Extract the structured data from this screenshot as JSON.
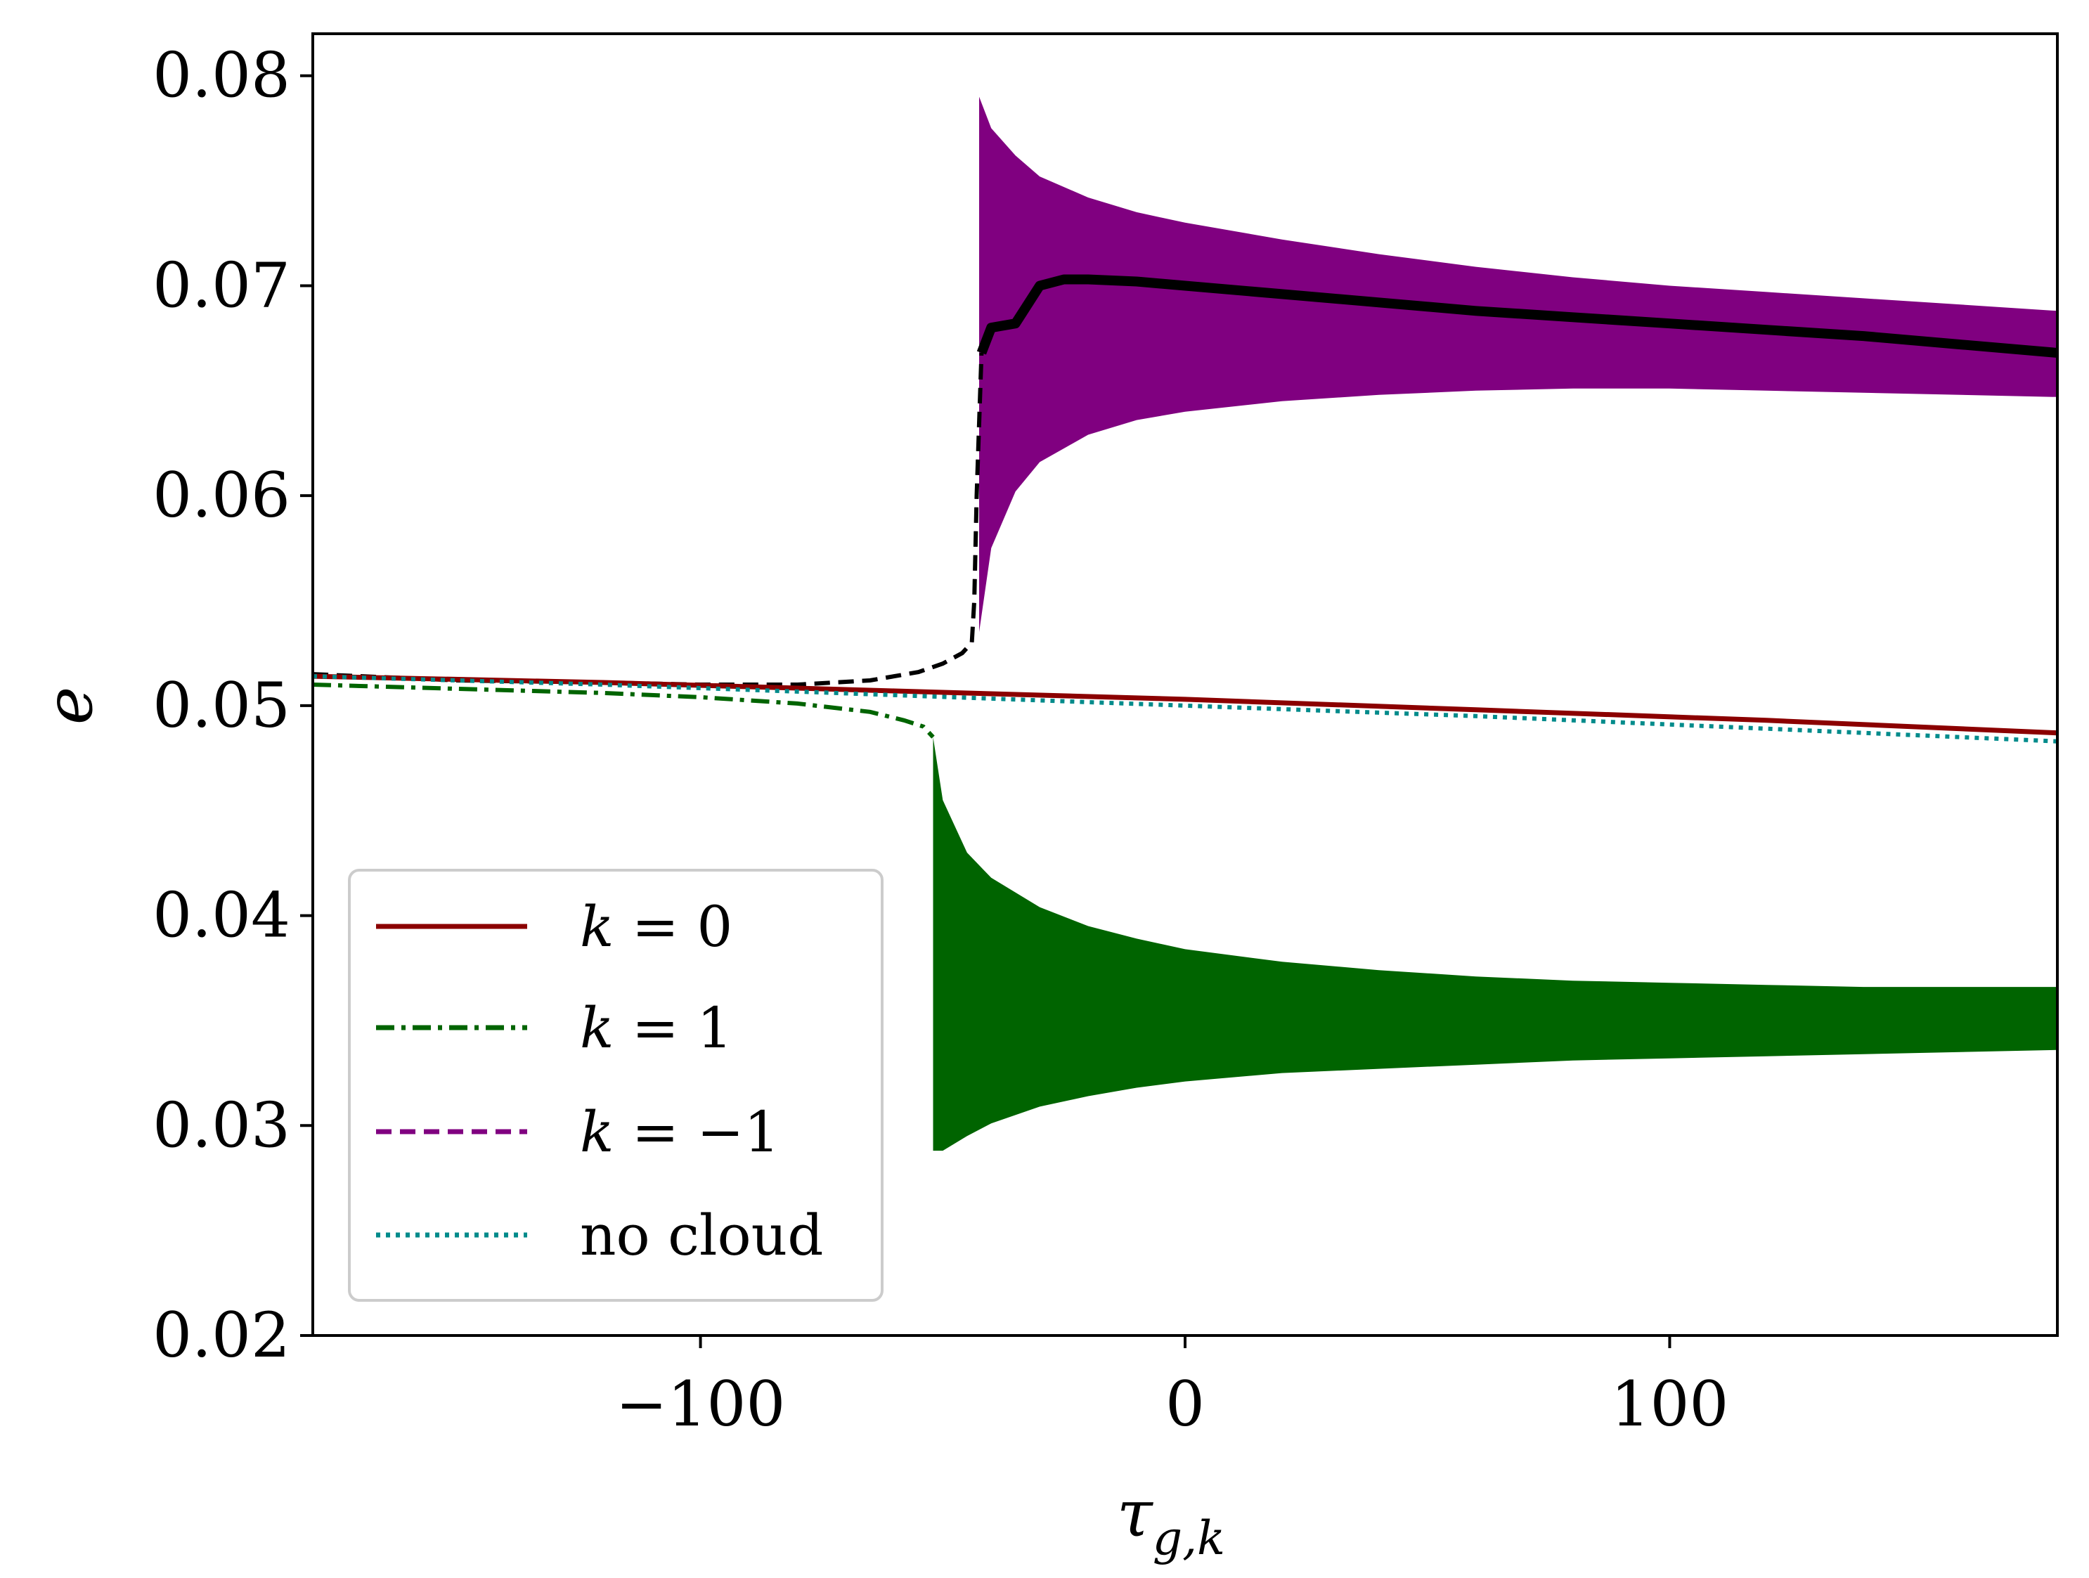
{
  "chart_data": {
    "type": "line",
    "title": "",
    "xlabel": "τ_g,k",
    "ylabel": "e",
    "xlim": [
      -180,
      180
    ],
    "ylim": [
      0.02,
      0.082
    ],
    "xticks": [
      -100,
      0,
      100
    ],
    "xtick_labels": [
      "−100",
      "0",
      "100"
    ],
    "yticks": [
      0.02,
      0.03,
      0.04,
      0.05,
      0.06,
      0.07,
      0.08
    ],
    "ytick_labels": [
      "0.02",
      "0.03",
      "0.04",
      "0.05",
      "0.06",
      "0.07",
      "0.08"
    ],
    "grid": false,
    "legend_position": "lower-left",
    "series": [
      {
        "name": "k = 0",
        "color": "#8b0000",
        "style": "solid",
        "x": [
          -180,
          -120,
          -60,
          0,
          60,
          120,
          180
        ],
        "y": [
          0.0514,
          0.0511,
          0.0507,
          0.0503,
          0.0498,
          0.0493,
          0.0487
        ]
      },
      {
        "name": "k = 1",
        "color": "#006400",
        "style": "dashdot",
        "x": [
          -180,
          -150,
          -120,
          -100,
          -80,
          -65,
          -58,
          -54,
          -52
        ],
        "y": [
          0.051,
          0.0508,
          0.0506,
          0.0504,
          0.0501,
          0.0497,
          0.0493,
          0.049,
          0.0485
        ],
        "band": {
          "x": [
            -52,
            -50,
            -45,
            -40,
            -30,
            -20,
            -10,
            0,
            20,
            40,
            60,
            80,
            100,
            120,
            140,
            160,
            180
          ],
          "upper": [
            0.0485,
            0.0455,
            0.043,
            0.0418,
            0.0404,
            0.0395,
            0.0389,
            0.0384,
            0.0378,
            0.0374,
            0.0371,
            0.0369,
            0.0368,
            0.0367,
            0.0366,
            0.0366,
            0.0366
          ],
          "lower": [
            0.0288,
            0.0288,
            0.0295,
            0.0301,
            0.0309,
            0.0314,
            0.0318,
            0.0321,
            0.0325,
            0.0327,
            0.0329,
            0.0331,
            0.0332,
            0.0333,
            0.0334,
            0.0335,
            0.0336
          ]
        }
      },
      {
        "name": "k = −1",
        "color": "#800080",
        "style": "dashed",
        "x": [
          -180,
          -150,
          -120,
          -100,
          -80,
          -65,
          -55,
          -50,
          -46,
          -44,
          -43.5,
          -43,
          -42,
          -40,
          -35,
          -30,
          -25,
          -20,
          -10,
          0,
          20,
          40,
          60,
          80,
          100,
          120,
          140,
          160,
          180
        ],
        "y": [
          0.0515,
          0.0512,
          0.0511,
          0.051,
          0.051,
          0.0512,
          0.0516,
          0.052,
          0.0525,
          0.053,
          0.055,
          0.06,
          0.0668,
          0.068,
          0.0682,
          0.07,
          0.0703,
          0.0703,
          0.0702,
          0.07,
          0.0696,
          0.0692,
          0.0688,
          0.0685,
          0.0682,
          0.0679,
          0.0676,
          0.0672,
          0.0668
        ],
        "band": {
          "x": [
            -42.5,
            -40,
            -35,
            -30,
            -20,
            -10,
            0,
            20,
            40,
            60,
            80,
            100,
            120,
            140,
            160,
            180
          ],
          "upper": [
            0.079,
            0.0775,
            0.0762,
            0.0752,
            0.0742,
            0.0735,
            0.073,
            0.0722,
            0.0715,
            0.0709,
            0.0704,
            0.07,
            0.0697,
            0.0694,
            0.0691,
            0.0688
          ],
          "lower": [
            0.0535,
            0.0575,
            0.0602,
            0.0616,
            0.0629,
            0.0636,
            0.064,
            0.0645,
            0.0648,
            0.065,
            0.0651,
            0.0651,
            0.065,
            0.0649,
            0.0648,
            0.0647
          ]
        }
      },
      {
        "name": "no cloud",
        "color": "#008b8b",
        "style": "dotted",
        "x": [
          -180,
          -120,
          -60,
          0,
          60,
          120,
          180
        ],
        "y": [
          0.0514,
          0.051,
          0.0505,
          0.05,
          0.0495,
          0.0489,
          0.0483
        ]
      }
    ]
  }
}
